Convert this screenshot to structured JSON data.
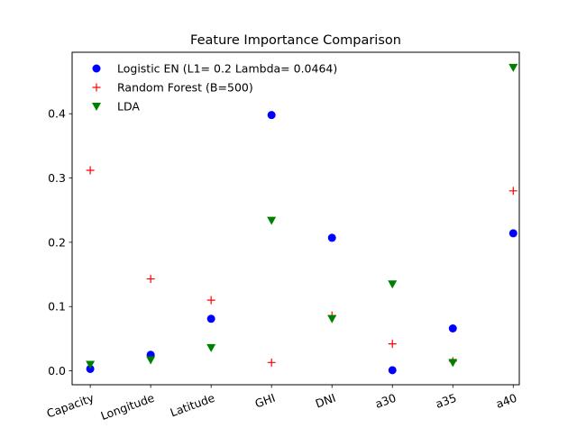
{
  "chart_data": {
    "type": "scatter",
    "title": "Feature Importance Comparison",
    "xlabel": "",
    "ylabel": "",
    "categories": [
      "Capacity",
      "Longitude",
      "Latitude",
      "GHI",
      "DNI",
      "a30",
      "a35",
      "a40"
    ],
    "ylim": [
      -0.0216,
      0.4956
    ],
    "yticks": [
      0.0,
      0.1,
      0.2,
      0.3,
      0.4
    ],
    "ytick_labels": [
      "0.0",
      "0.1",
      "0.2",
      "0.3",
      "0.4"
    ],
    "grid": false,
    "legend_position": "top-left",
    "series": [
      {
        "name": "Logistic EN (L1= 0.2 Lambda= 0.0464)",
        "marker": "circle",
        "color": "#0000ff",
        "values": [
          0.003,
          0.025,
          0.081,
          0.398,
          0.207,
          0.001,
          0.066,
          0.214
        ]
      },
      {
        "name": "Random Forest (B=500)",
        "marker": "plus",
        "color": "#ff0000",
        "values": [
          0.312,
          0.143,
          0.11,
          0.013,
          0.086,
          0.042,
          0.015,
          0.28
        ]
      },
      {
        "name": "LDA",
        "marker": "triangle-down",
        "color": "#008000",
        "values": [
          0.01,
          0.017,
          0.036,
          0.234,
          0.081,
          0.135,
          0.013,
          0.472
        ]
      }
    ]
  }
}
